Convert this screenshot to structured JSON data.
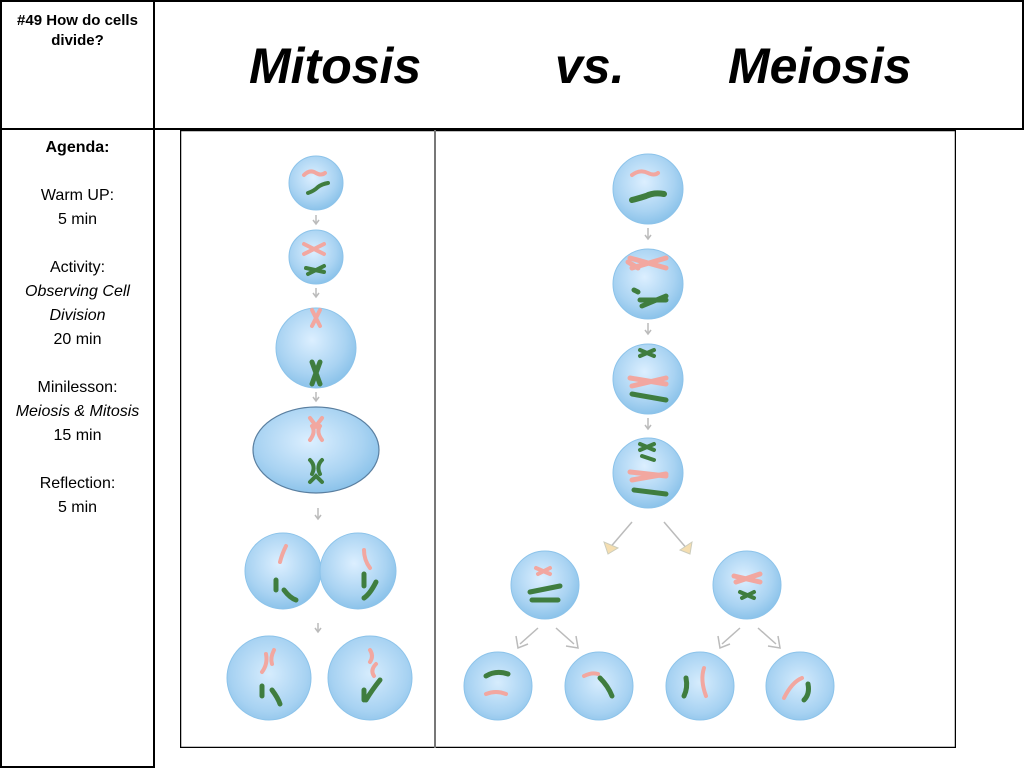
{
  "header": {
    "topic": "#49 How do cells divide?",
    "title_left": "Mitosis",
    "title_mid": "vs.",
    "title_right": "Meiosis"
  },
  "agenda": {
    "heading": "Agenda:",
    "items": [
      {
        "label": "Warm UP:",
        "detail": "",
        "duration": "5 min"
      },
      {
        "label": "Activity:",
        "detail": "Observing Cell Division",
        "duration": "20 min"
      },
      {
        "label": "Minilesson:",
        "detail": "Meiosis & Mitosis",
        "duration": "15 min"
      },
      {
        "label": "Reflection:",
        "detail": "",
        "duration": "5 min"
      }
    ]
  },
  "diagram": {
    "colors": {
      "cell_fill": "#a9d3f2",
      "cell_edge": "#7fb5e0",
      "maternal_chromosome": "#f2a7a0",
      "paternal_chromosome": "#3f7d3f",
      "arrow": "#c8c8c8",
      "frame": "#000000"
    }
  }
}
